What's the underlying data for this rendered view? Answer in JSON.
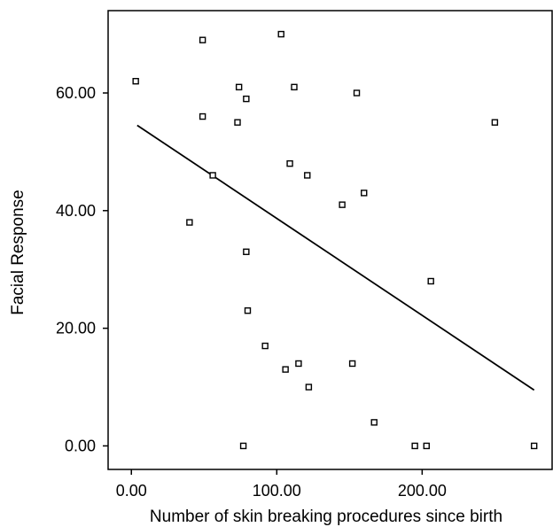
{
  "chart_data": {
    "type": "scatter",
    "title": "",
    "xlabel": "Number of skin breaking procedures since birth",
    "ylabel": "Facial Response",
    "xlim": [
      -16,
      290
    ],
    "ylim": [
      -4,
      74
    ],
    "xticks": [
      {
        "value": 0,
        "label": "0.00"
      },
      {
        "value": 100,
        "label": "100.00"
      },
      {
        "value": 200,
        "label": "200.00"
      }
    ],
    "yticks": [
      {
        "value": 0,
        "label": "0.00"
      },
      {
        "value": 20,
        "label": "20.00"
      },
      {
        "value": 40,
        "label": "40.00"
      },
      {
        "value": 60,
        "label": "60.00"
      }
    ],
    "grid": false,
    "legend": "none",
    "points": [
      {
        "x": 3,
        "y": 62
      },
      {
        "x": 40,
        "y": 38
      },
      {
        "x": 49,
        "y": 69
      },
      {
        "x": 49,
        "y": 56
      },
      {
        "x": 56,
        "y": 46
      },
      {
        "x": 73,
        "y": 55
      },
      {
        "x": 74,
        "y": 61
      },
      {
        "x": 77,
        "y": 0
      },
      {
        "x": 79,
        "y": 59
      },
      {
        "x": 79,
        "y": 33
      },
      {
        "x": 80,
        "y": 23
      },
      {
        "x": 92,
        "y": 17
      },
      {
        "x": 103,
        "y": 70
      },
      {
        "x": 106,
        "y": 13
      },
      {
        "x": 109,
        "y": 48
      },
      {
        "x": 112,
        "y": 61
      },
      {
        "x": 115,
        "y": 14
      },
      {
        "x": 121,
        "y": 46
      },
      {
        "x": 122,
        "y": 10
      },
      {
        "x": 145,
        "y": 41
      },
      {
        "x": 152,
        "y": 14
      },
      {
        "x": 155,
        "y": 60
      },
      {
        "x": 160,
        "y": 43
      },
      {
        "x": 167,
        "y": 4
      },
      {
        "x": 195,
        "y": 0
      },
      {
        "x": 203,
        "y": 0
      },
      {
        "x": 206,
        "y": 28
      },
      {
        "x": 250,
        "y": 55
      },
      {
        "x": 277,
        "y": 0
      }
    ],
    "fit_line": {
      "x": [
        4,
        277
      ],
      "y": [
        54.5,
        9.5
      ]
    },
    "colors": {
      "background": "#ffffff",
      "axis": "#000000",
      "marker_stroke": "#000000",
      "line": "#000000"
    }
  }
}
